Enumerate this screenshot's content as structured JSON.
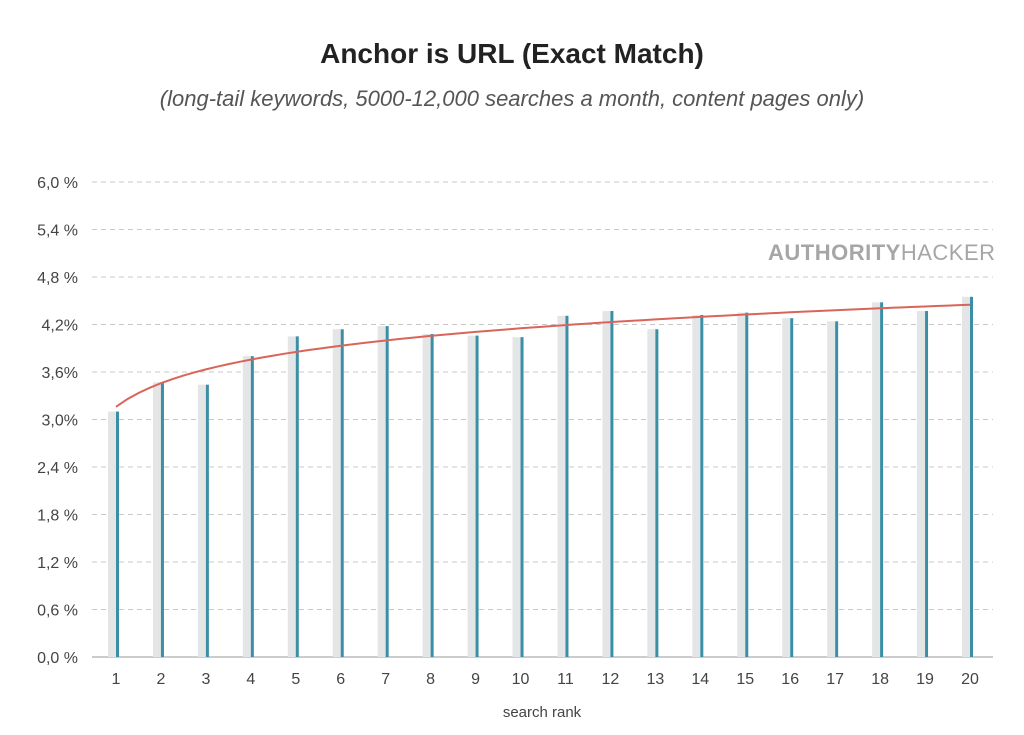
{
  "chart_data": {
    "type": "bar",
    "title": "Anchor is URL (Exact Match)",
    "subtitle": "(long-tail keywords, 5000-12,000 searches a month, content pages only)",
    "xlabel": "search rank",
    "ylabel": "",
    "ylim": [
      0,
      6.0
    ],
    "y_ticks": [
      0.0,
      0.6,
      1.2,
      1.8,
      2.4,
      3.0,
      3.6,
      4.2,
      4.8,
      5.4,
      6.0
    ],
    "y_tick_labels": [
      "0,0 %",
      "0,6 %",
      "1,2 %",
      "1,8 %",
      "2,4 %",
      "3,0%",
      "3,6%",
      "4,2%",
      "4,8 %",
      "5,4 %",
      "6,0 %"
    ],
    "categories": [
      "1",
      "2",
      "3",
      "4",
      "5",
      "6",
      "7",
      "8",
      "9",
      "10",
      "11",
      "12",
      "13",
      "14",
      "15",
      "16",
      "17",
      "18",
      "19",
      "20"
    ],
    "series": [
      {
        "values": [
          3.1,
          3.47,
          3.44,
          3.8,
          4.05,
          4.14,
          4.18,
          4.08,
          4.06,
          4.04,
          4.31,
          4.37,
          4.14,
          4.32,
          4.35,
          4.28,
          4.24,
          4.48,
          4.37,
          4.55
        ],
        "color": "#3a8fa6"
      }
    ],
    "trendline": {
      "type": "logarithmic",
      "start": 3.16,
      "end": 4.45,
      "color": "#d9655a"
    },
    "grid": true,
    "grid_style": "dashed",
    "colors": {
      "bar": "#3a8fa6",
      "bar_shadow": "#e3e5e6",
      "trend": "#d9655a",
      "grid": "#c8c8c8"
    }
  },
  "watermark": {
    "bold": "AUTHORITY",
    "regular": "HACKER"
  }
}
